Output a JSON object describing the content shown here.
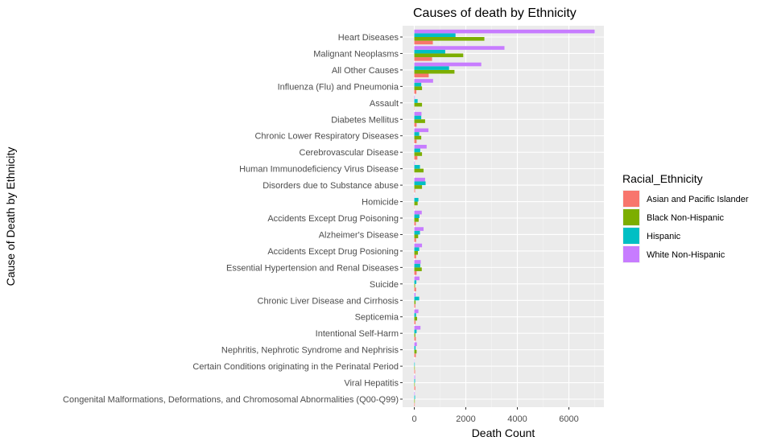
{
  "chart_data": {
    "type": "bar",
    "orientation": "horizontal",
    "title": "Causes of death by Ethnicity",
    "xlabel": "Death Count",
    "ylabel": "Cause of Death by Ethnicity",
    "xlim": [
      0,
      7000
    ],
    "xticks": [
      0,
      2000,
      4000,
      6000
    ],
    "grid": true,
    "legend_title": "Racial_Ethnicity",
    "legend_position": "right",
    "categories": [
      "Heart Diseases",
      "Malignant Neoplasms",
      "All Other Causes",
      "Influenza (Flu) and Pneumonia",
      "Assault",
      "Diabetes Mellitus",
      "Chronic Lower Respiratory Diseases",
      "Cerebrovascular Disease",
      "Human Immunodeficiency Virus Disease",
      "Disorders due to Substance abuse",
      "Homicide",
      "Accidents Except Drug Poisoning",
      "Alzheimer's Disease",
      "Accidents Except Drug Posioning",
      "Essential Hypertension and Renal Diseases",
      "Suicide",
      "Chronic Liver Disease and Cirrhosis",
      "Septicemia",
      "Intentional Self-Harm",
      "Nephritis, Nephrotic Syndrome and Nephrisis",
      "Certain Conditions originating in the Perinatal Period",
      "Viral Hepatitis",
      "Congenital Malformations, Deformations, and Chromosomal Abnormalities (Q00-Q99)"
    ],
    "series": [
      {
        "name": "Asian and Pacific Islander",
        "color": "#F8766D",
        "values": [
          720,
          690,
          560,
          80,
          10,
          90,
          90,
          120,
          5,
          30,
          10,
          60,
          70,
          70,
          90,
          70,
          40,
          50,
          60,
          60,
          30,
          40,
          20
        ]
      },
      {
        "name": "Black Non-Hispanic",
        "color": "#7CAE00",
        "values": [
          2720,
          1900,
          1560,
          300,
          300,
          420,
          270,
          300,
          360,
          300,
          130,
          170,
          150,
          140,
          290,
          30,
          50,
          110,
          40,
          90,
          20,
          20,
          20
        ]
      },
      {
        "name": "Hispanic",
        "color": "#00BFC4",
        "values": [
          1600,
          1200,
          1350,
          270,
          130,
          270,
          190,
          230,
          220,
          440,
          160,
          200,
          220,
          190,
          230,
          80,
          190,
          70,
          90,
          50,
          20,
          30,
          30
        ]
      },
      {
        "name": "White Non-Hispanic",
        "color": "#C77CFF",
        "values": [
          7000,
          3500,
          2600,
          730,
          20,
          280,
          550,
          480,
          20,
          420,
          10,
          290,
          360,
          300,
          250,
          200,
          50,
          160,
          240,
          100,
          10,
          30,
          20
        ]
      }
    ]
  }
}
